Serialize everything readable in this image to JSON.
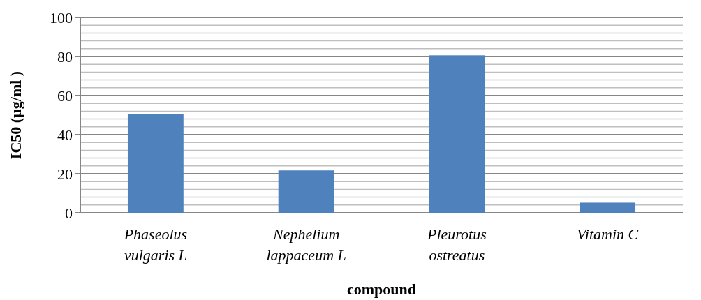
{
  "chart_data": {
    "type": "bar",
    "xlabel": "compound",
    "ylabel": "IC50 (µg/ml )",
    "categories": [
      "Phaseolus vulgaris L",
      "Nephelium lappaceum L",
      "Pleurotus ostreatus",
      "Vitamin C"
    ],
    "values": [
      50.5,
      21.7,
      80.6,
      5.2
    ],
    "color": "#4f81bd",
    "ylim": [
      0,
      100
    ],
    "yticks": [
      0,
      {
        "value": 4,
        "label": null
      },
      {
        "value": 8,
        "label": null
      },
      {
        "value": 12,
        "label": null
      },
      {
        "value": 16,
        "label": null
      },
      20,
      {
        "value": 24,
        "label": null
      },
      {
        "value": 28,
        "label": null
      },
      {
        "value": 32,
        "label": null
      },
      {
        "value": 36,
        "label": null
      },
      40,
      {
        "value": 44,
        "label": null
      },
      {
        "value": 48,
        "label": null
      },
      {
        "value": 52,
        "label": null
      },
      {
        "value": 56,
        "label": null
      },
      60,
      {
        "value": 64,
        "label": null
      },
      {
        "value": 68,
        "label": null
      },
      {
        "value": 72,
        "label": null
      },
      {
        "value": 76,
        "label": null
      },
      80,
      {
        "value": 84,
        "label": null
      },
      {
        "value": 88,
        "label": null
      },
      {
        "value": 92,
        "label": null
      },
      {
        "value": 96,
        "label": null
      },
      100
    ],
    "grid": true
  }
}
